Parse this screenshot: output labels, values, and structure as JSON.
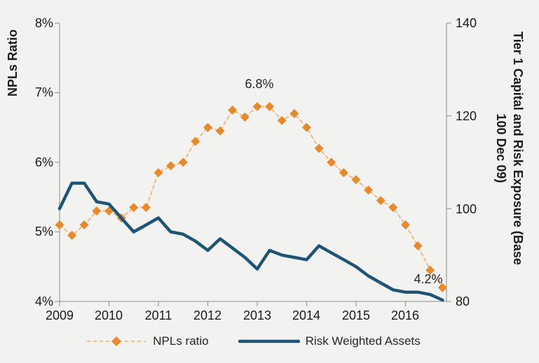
{
  "chart_data": {
    "type": "line",
    "title": "",
    "x_axis": {
      "tick_labels": [
        "2009",
        "2010",
        "2011",
        "2012",
        "2013",
        "2014",
        "2015",
        "2016"
      ],
      "tick_values": [
        2009,
        2010,
        2011,
        2012,
        2013,
        2014,
        2015,
        2016
      ],
      "range": [
        2009,
        2016.83
      ]
    },
    "y_left": {
      "label": "NPLs Ratio",
      "tick_labels": [
        "8%",
        "7%",
        "6%",
        "5%",
        "4%"
      ],
      "tick_values": [
        8,
        7,
        6,
        5,
        4
      ],
      "range": [
        4,
        8
      ]
    },
    "y_right": {
      "label_line1": "Tier 1 Capital and Risk Exposure (Base",
      "label_line2": "100 Dec 09)",
      "tick_labels": [
        "140",
        "120",
        "100",
        "80"
      ],
      "tick_values": [
        140,
        120,
        100,
        80
      ],
      "range": [
        80,
        140
      ]
    },
    "x_quarters": [
      2009.0,
      2009.25,
      2009.5,
      2009.75,
      2010.0,
      2010.25,
      2010.5,
      2010.75,
      2011.0,
      2011.25,
      2011.5,
      2011.75,
      2012.0,
      2012.25,
      2012.5,
      2012.75,
      2013.0,
      2013.25,
      2013.5,
      2013.75,
      2014.0,
      2014.25,
      2014.5,
      2014.75,
      2015.0,
      2015.25,
      2015.5,
      2015.75,
      2016.0,
      2016.25,
      2016.5,
      2016.75
    ],
    "series": [
      {
        "name": "NPLs ratio",
        "axis": "left",
        "style": "dashed-diamond",
        "color": "#E68A2E",
        "line_color": "#F0AE6A",
        "line_width": 1.6,
        "dash": "5,4",
        "values": [
          5.1,
          4.95,
          5.1,
          5.3,
          5.3,
          5.2,
          5.35,
          5.35,
          5.85,
          5.95,
          6.0,
          6.3,
          6.5,
          6.45,
          6.75,
          6.65,
          6.8,
          6.8,
          6.6,
          6.7,
          6.5,
          6.2,
          6.0,
          5.85,
          5.75,
          5.6,
          5.45,
          5.35,
          5.1,
          4.8,
          4.45,
          4.2
        ]
      },
      {
        "name": "Risk Weighted Assets",
        "axis": "right",
        "style": "solid",
        "color": "#1E5577",
        "line_width": 4.5,
        "values": [
          100,
          105.5,
          105.5,
          101.5,
          101,
          98,
          95,
          96.5,
          98,
          95,
          94.5,
          93,
          91,
          93.5,
          91.5,
          89.5,
          87,
          91,
          90,
          89.5,
          89,
          92,
          90.5,
          89,
          87.5,
          85.5,
          84,
          82.5,
          82,
          82,
          81.5,
          80.3
        ]
      }
    ],
    "annotations": [
      {
        "text": "6.8%",
        "x": 2013.0,
        "y": 6.8
      },
      {
        "text": "4.2%",
        "x": 2016.75,
        "y": 4.2
      }
    ],
    "legend": {
      "position": "bottom",
      "entries": [
        "NPLs ratio",
        "Risk Weighted Assets"
      ]
    },
    "colors": {
      "spine": "#8C8C8C",
      "background": "#F2F2F0",
      "text": "#1A1A1A"
    }
  }
}
